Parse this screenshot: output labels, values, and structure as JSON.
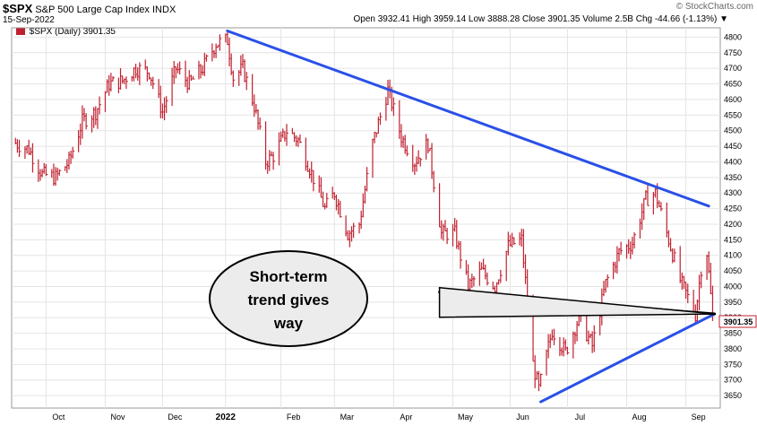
{
  "header": {
    "symbol": "$SPX",
    "name": "S&P 500 Large Cap Index",
    "exchange": "INDX",
    "date": "15-Sep-2022",
    "quote": "Open 3932.41  High 3959.14  Low 3888.28  Close 3901.35  Volume 2.5B  Chg -44.66 (-1.13%) ▼",
    "watermark": "© StockCharts.com"
  },
  "legend": {
    "label": "$SPX (Daily) 3901.35",
    "color": "#cc2233"
  },
  "annotation": {
    "lines": [
      "Short-term",
      "trend gives",
      "way"
    ]
  },
  "last_price_label": "3901.35",
  "colors": {
    "bars": "#c0202f",
    "trendline": "#2a50e8",
    "annotation_line": "#000000",
    "bubble_fill": "#ececec"
  },
  "chart_data": {
    "type": "line",
    "title": "$SPX S&P 500 Large Cap Index",
    "ylim": [
      3610,
      4830
    ],
    "y_ticks": [
      3650,
      3700,
      3750,
      3800,
      3850,
      3900,
      3950,
      4000,
      4050,
      4100,
      4150,
      4200,
      4250,
      4300,
      4350,
      4400,
      4450,
      4500,
      4550,
      4600,
      4650,
      4700,
      4750,
      4800
    ],
    "x_labels": [
      "Oct",
      "Nov",
      "Dec",
      "2022",
      "Feb",
      "Mar",
      "Apr",
      "May",
      "Jun",
      "Jul",
      "Aug",
      "Sep"
    ],
    "series": [
      {
        "style": "ohlc-bars",
        "x": [
          "2021-09-15",
          "2021-09-22",
          "2021-09-29",
          "2021-10-06",
          "2021-10-13",
          "2021-10-20",
          "2021-10-27",
          "2021-11-03",
          "2021-11-10",
          "2021-11-17",
          "2021-11-24",
          "2021-12-01",
          "2021-12-08",
          "2021-12-15",
          "2021-12-22",
          "2021-12-29",
          "2022-01-04",
          "2022-01-07",
          "2022-01-12",
          "2022-01-18",
          "2022-01-24",
          "2022-01-28",
          "2022-02-04",
          "2022-02-10",
          "2022-02-16",
          "2022-02-24",
          "2022-03-01",
          "2022-03-08",
          "2022-03-14",
          "2022-03-21",
          "2022-03-29",
          "2022-04-05",
          "2022-04-12",
          "2022-04-19",
          "2022-04-26",
          "2022-05-03",
          "2022-05-10",
          "2022-05-17",
          "2022-05-24",
          "2022-05-31",
          "2022-06-07",
          "2022-06-13",
          "2022-06-16",
          "2022-06-23",
          "2022-06-30",
          "2022-07-07",
          "2022-07-14",
          "2022-07-21",
          "2022-07-28",
          "2022-08-04",
          "2022-08-11",
          "2022-08-16",
          "2022-08-23",
          "2022-08-29",
          "2022-09-06",
          "2022-09-09",
          "2022-09-12",
          "2022-09-15"
        ],
        "y": [
          4460,
          4440,
          4360,
          4350,
          4400,
          4530,
          4560,
          4650,
          4660,
          4700,
          4690,
          4560,
          4700,
          4650,
          4700,
          4780,
          4790,
          4670,
          4700,
          4580,
          4400,
          4420,
          4500,
          4470,
          4380,
          4250,
          4300,
          4170,
          4200,
          4460,
          4630,
          4480,
          4400,
          4460,
          4170,
          4170,
          4000,
          4050,
          4000,
          4130,
          4150,
          3750,
          3670,
          3860,
          3790,
          3900,
          3810,
          4010,
          4110,
          4140,
          4280,
          4300,
          4150,
          4020,
          3910,
          4060,
          4110,
          3901
        ]
      }
    ],
    "trendlines": [
      {
        "name": "resistance",
        "points": [
          [
            "2022-01-04",
            4820
          ],
          [
            "2022-09-13",
            4258
          ]
        ]
      },
      {
        "name": "support",
        "points": [
          [
            "2022-06-17",
            3630
          ],
          [
            "2022-09-16",
            3912
          ]
        ]
      },
      {
        "name": "short-term",
        "points": [
          [
            "2022-04-25",
            3982
          ],
          [
            "2022-09-16",
            3912
          ]
        ]
      }
    ]
  }
}
